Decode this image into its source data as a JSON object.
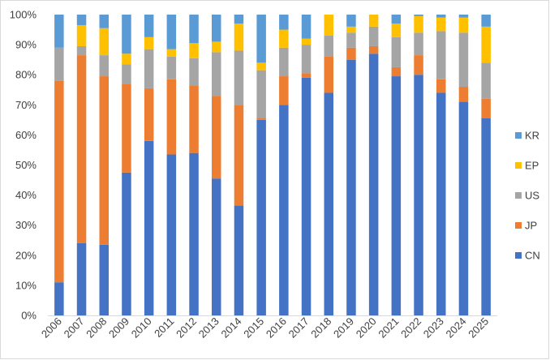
{
  "chart_data": {
    "type": "bar",
    "stacked": true,
    "percent_stacked": true,
    "title": "",
    "xlabel": "",
    "ylabel": "",
    "ylim": [
      0,
      100
    ],
    "yticks": [
      "0%",
      "10%",
      "20%",
      "30%",
      "40%",
      "50%",
      "60%",
      "70%",
      "80%",
      "90%",
      "100%"
    ],
    "grid": false,
    "legend_position": "right",
    "categories": [
      "2006",
      "2007",
      "2008",
      "2009",
      "2010",
      "2011",
      "2012",
      "2013",
      "2014",
      "2015",
      "2016",
      "2017",
      "2018",
      "2019",
      "2020",
      "2021",
      "2022",
      "2023",
      "2024",
      "2025"
    ],
    "series": [
      {
        "name": "CN",
        "color": "#4472C4",
        "values": [
          11,
          24,
          23.5,
          47.5,
          58,
          53.5,
          54,
          45.5,
          36.5,
          65,
          70,
          79,
          74,
          85,
          87,
          79.5,
          80,
          74,
          71,
          65.5
        ]
      },
      {
        "name": "JP",
        "color": "#ED7D31",
        "values": [
          67,
          62.5,
          56,
          29.5,
          17.5,
          25,
          22.5,
          27.5,
          33.5,
          0.5,
          9.5,
          1.5,
          12,
          4,
          2.5,
          3,
          6.5,
          4.5,
          5,
          6.5
        ]
      },
      {
        "name": "US",
        "color": "#A5A5A5",
        "values": [
          11,
          3,
          7,
          6.5,
          13,
          7.5,
          9,
          14.5,
          18,
          16,
          9.5,
          9.5,
          7,
          5,
          6.5,
          10,
          7.5,
          16,
          18,
          12
        ]
      },
      {
        "name": "EP",
        "color": "#FFC000",
        "values": [
          0,
          7,
          9,
          3.5,
          4,
          2.5,
          5,
          3.5,
          9,
          2.5,
          6,
          2,
          7,
          2,
          4,
          4.5,
          5.5,
          4.5,
          5,
          12
        ]
      },
      {
        "name": "KR",
        "color": "#5B9BD5",
        "values": [
          11,
          3.5,
          4.5,
          13,
          7.5,
          11.5,
          9.5,
          9,
          3,
          16,
          5,
          8,
          0,
          4,
          0,
          3,
          0.5,
          1,
          1,
          4
        ]
      }
    ],
    "legend_order": [
      "KR",
      "EP",
      "US",
      "JP",
      "CN"
    ]
  }
}
